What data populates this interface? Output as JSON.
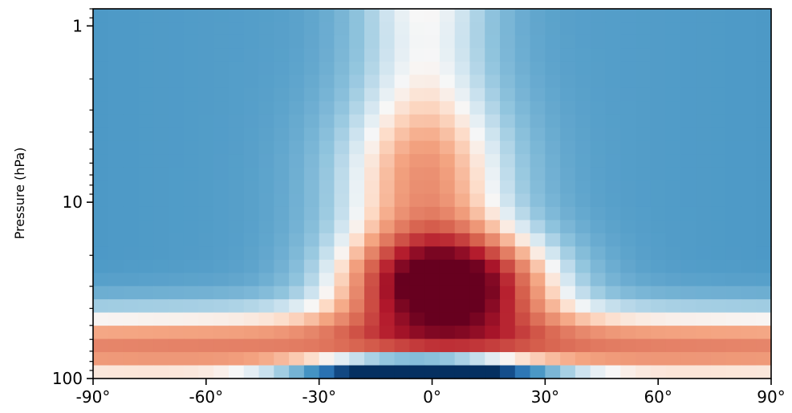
{
  "chart_data": {
    "type": "heatmap",
    "title": "",
    "xlabel": "",
    "ylabel": "Pressure (hPa)",
    "x_scale": "linear",
    "y_scale": "log",
    "xlim": [
      -90,
      90
    ],
    "ylim": [
      100,
      0.8
    ],
    "x_ticks": [
      {
        "value": -90,
        "label": "-90°"
      },
      {
        "value": -60,
        "label": "-60°"
      },
      {
        "value": -30,
        "label": "-30°"
      },
      {
        "value": 0,
        "label": "0°"
      },
      {
        "value": 30,
        "label": "30°"
      },
      {
        "value": 60,
        "label": "60°"
      },
      {
        "value": 90,
        "label": "90°"
      }
    ],
    "y_ticks": [
      {
        "value": 1,
        "label": "1"
      },
      {
        "value": 10,
        "label": "10"
      },
      {
        "value": 100,
        "label": "100"
      }
    ],
    "colormap": "RdBu_r",
    "value_range": [
      -1,
      1
    ],
    "grid": false,
    "columns": 45,
    "rows": 28
  }
}
